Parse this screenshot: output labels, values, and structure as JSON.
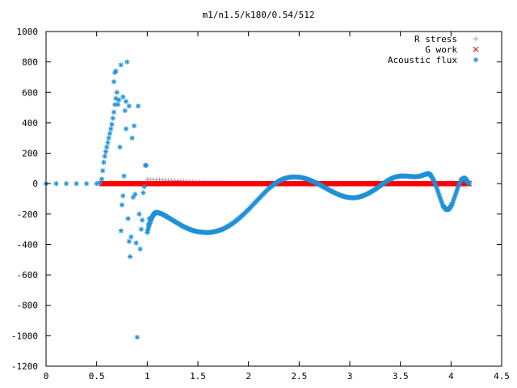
{
  "chart_data": {
    "type": "scatter",
    "title": "m1/n1.5/k180/0.54/512",
    "xlabel": "",
    "ylabel": "",
    "xlim": [
      0,
      4.5
    ],
    "ylim": [
      -1200,
      1000
    ],
    "xticks": [
      0,
      0.5,
      1,
      1.5,
      2,
      2.5,
      3,
      3.5,
      4,
      4.5
    ],
    "xtick_labels": [
      "0",
      "0.5",
      "1",
      "1.5",
      "2",
      "2.5",
      "3",
      "3.5",
      "4",
      "4.5"
    ],
    "yticks": [
      -1200,
      -1000,
      -800,
      -600,
      -400,
      -200,
      0,
      200,
      400,
      600,
      800,
      1000
    ],
    "ytick_labels": [
      "-1200",
      "-1000",
      "-800",
      "-600",
      "-400",
      "-200",
      "0",
      "200",
      "400",
      "600",
      "800",
      "1000"
    ],
    "legend_position": "top-right",
    "grid": false,
    "series": [
      {
        "name": "R stress",
        "marker": "+",
        "color": "#a0a0a0",
        "points": [
          [
            1.0,
            28
          ],
          [
            1.03,
            27
          ],
          [
            1.06,
            26
          ],
          [
            1.09,
            25
          ],
          [
            1.12,
            25
          ],
          [
            1.15,
            24
          ],
          [
            1.18,
            23
          ],
          [
            1.21,
            22
          ],
          [
            1.24,
            21
          ],
          [
            1.27,
            20
          ],
          [
            1.3,
            19
          ],
          [
            1.33,
            18
          ],
          [
            1.36,
            17
          ],
          [
            1.39,
            16
          ],
          [
            1.42,
            15
          ],
          [
            1.45,
            14
          ],
          [
            1.48,
            13
          ],
          [
            1.51,
            12
          ],
          [
            1.54,
            11
          ],
          [
            1.57,
            10
          ],
          [
            1.6,
            9
          ],
          [
            1.63,
            8
          ],
          [
            1.66,
            7
          ],
          [
            1.69,
            6
          ],
          [
            1.72,
            5
          ],
          [
            1.75,
            4
          ],
          [
            1.78,
            3
          ],
          [
            1.81,
            2
          ],
          [
            1.84,
            2
          ],
          [
            1.87,
            1
          ],
          [
            1.9,
            1
          ],
          [
            1.93,
            0
          ]
        ]
      },
      {
        "name": "G work",
        "marker": "x",
        "color": "#ff0000",
        "x_range": [
          0.55,
          4.18
        ],
        "y_value": 0
      },
      {
        "name": "Acoustic flux",
        "marker": "*",
        "color": "#1e90d8",
        "scatter_points": [
          [
            0.0,
            0
          ],
          [
            0.1,
            0
          ],
          [
            0.2,
            0
          ],
          [
            0.3,
            0
          ],
          [
            0.4,
            0
          ],
          [
            0.5,
            0
          ],
          [
            0.53,
            5
          ],
          [
            0.55,
            30
          ],
          [
            0.56,
            85
          ],
          [
            0.57,
            140
          ],
          [
            0.58,
            180
          ],
          [
            0.59,
            210
          ],
          [
            0.6,
            240
          ],
          [
            0.61,
            270
          ],
          [
            0.62,
            300
          ],
          [
            0.63,
            330
          ],
          [
            0.64,
            360
          ],
          [
            0.65,
            390
          ],
          [
            0.66,
            430
          ],
          [
            0.67,
            470
          ],
          [
            0.68,
            520
          ],
          [
            0.69,
            560
          ],
          [
            0.7,
            600
          ],
          [
            0.72,
            550
          ],
          [
            0.73,
            240
          ],
          [
            0.74,
            -310
          ],
          [
            0.75,
            -140
          ],
          [
            0.76,
            -80
          ],
          [
            0.77,
            50
          ],
          [
            0.78,
            480
          ],
          [
            0.79,
            360
          ],
          [
            0.8,
            800
          ],
          [
            0.81,
            -230
          ],
          [
            0.82,
            -380
          ],
          [
            0.83,
            -480
          ],
          [
            0.84,
            -350
          ],
          [
            0.85,
            300
          ],
          [
            0.86,
            -90
          ],
          [
            0.87,
            380
          ],
          [
            0.88,
            -70
          ],
          [
            0.89,
            -390
          ],
          [
            0.9,
            -1010
          ],
          [
            0.91,
            510
          ],
          [
            0.92,
            -200
          ],
          [
            0.93,
            -430
          ],
          [
            0.94,
            -300
          ],
          [
            0.95,
            -240
          ],
          [
            0.96,
            -60
          ],
          [
            0.97,
            -20
          ],
          [
            0.98,
            120
          ],
          [
            0.99,
            120
          ],
          [
            1.0,
            -320
          ],
          [
            1.01,
            -270
          ],
          [
            1.02,
            -230
          ],
          [
            0.67,
            670
          ],
          [
            0.68,
            730
          ],
          [
            0.69,
            740
          ],
          [
            0.74,
            780
          ],
          [
            0.76,
            570
          ],
          [
            0.79,
            540
          ],
          [
            0.82,
            510
          ],
          [
            0.71,
            520
          ]
        ],
        "curve_points": [
          [
            1.0,
            -320
          ],
          [
            1.02,
            -270
          ],
          [
            1.04,
            -230
          ],
          [
            1.06,
            -205
          ],
          [
            1.08,
            -190
          ],
          [
            1.1,
            -190
          ],
          [
            1.13,
            -195
          ],
          [
            1.16,
            -205
          ],
          [
            1.2,
            -220
          ],
          [
            1.25,
            -240
          ],
          [
            1.3,
            -260
          ],
          [
            1.35,
            -280
          ],
          [
            1.4,
            -295
          ],
          [
            1.45,
            -308
          ],
          [
            1.5,
            -316
          ],
          [
            1.55,
            -320
          ],
          [
            1.6,
            -322
          ],
          [
            1.65,
            -318
          ],
          [
            1.7,
            -310
          ],
          [
            1.75,
            -298
          ],
          [
            1.8,
            -280
          ],
          [
            1.85,
            -258
          ],
          [
            1.9,
            -232
          ],
          [
            1.95,
            -202
          ],
          [
            2.0,
            -170
          ],
          [
            2.05,
            -135
          ],
          [
            2.1,
            -100
          ],
          [
            2.15,
            -65
          ],
          [
            2.2,
            -32
          ],
          [
            2.25,
            -5
          ],
          [
            2.3,
            18
          ],
          [
            2.35,
            33
          ],
          [
            2.4,
            41
          ],
          [
            2.45,
            44
          ],
          [
            2.5,
            42
          ],
          [
            2.55,
            36
          ],
          [
            2.6,
            25
          ],
          [
            2.65,
            11
          ],
          [
            2.7,
            -6
          ],
          [
            2.75,
            -25
          ],
          [
            2.8,
            -43
          ],
          [
            2.85,
            -60
          ],
          [
            2.9,
            -75
          ],
          [
            2.95,
            -86
          ],
          [
            3.0,
            -92
          ],
          [
            3.05,
            -93
          ],
          [
            3.1,
            -87
          ],
          [
            3.15,
            -75
          ],
          [
            3.2,
            -58
          ],
          [
            3.25,
            -38
          ],
          [
            3.3,
            -15
          ],
          [
            3.35,
            10
          ],
          [
            3.4,
            30
          ],
          [
            3.45,
            44
          ],
          [
            3.5,
            50
          ],
          [
            3.55,
            50
          ],
          [
            3.6,
            47
          ],
          [
            3.65,
            45
          ],
          [
            3.7,
            50
          ],
          [
            3.75,
            62
          ],
          [
            3.78,
            66
          ],
          [
            3.8,
            55
          ],
          [
            3.83,
            20
          ],
          [
            3.86,
            -30
          ],
          [
            3.89,
            -90
          ],
          [
            3.92,
            -145
          ],
          [
            3.95,
            -170
          ],
          [
            3.98,
            -168
          ],
          [
            4.01,
            -135
          ],
          [
            4.04,
            -80
          ],
          [
            4.07,
            -20
          ],
          [
            4.1,
            25
          ],
          [
            4.13,
            38
          ],
          [
            4.15,
            25
          ],
          [
            4.18,
            0
          ]
        ]
      }
    ]
  }
}
